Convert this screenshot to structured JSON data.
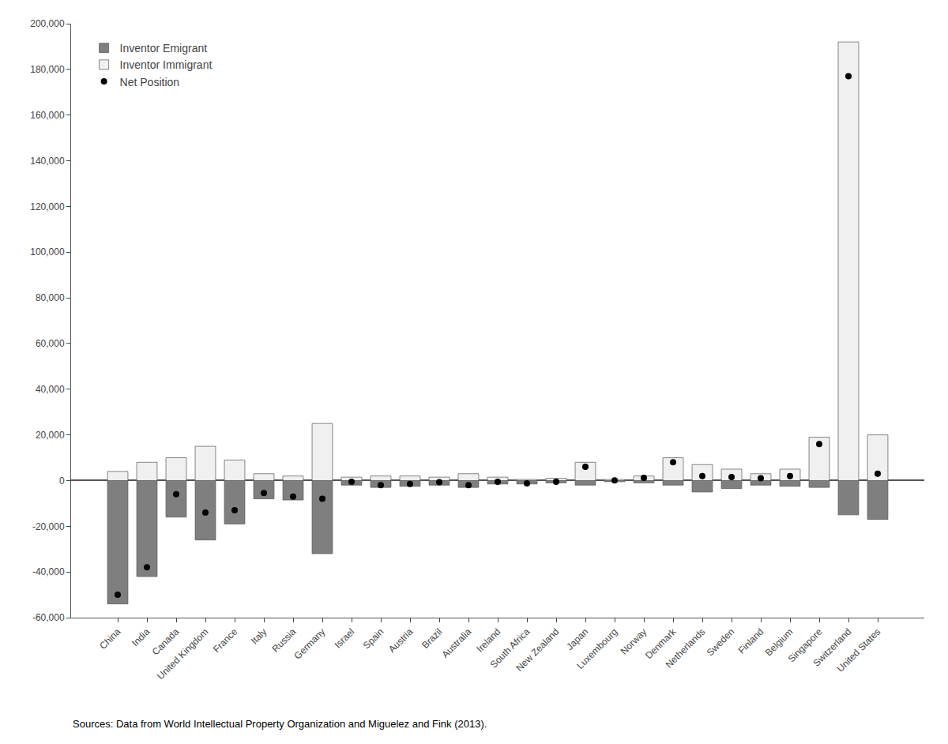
{
  "chart_data": {
    "type": "bar",
    "categories": [
      "China",
      "India",
      "Canada",
      "United Kingdom",
      "France",
      "Italy",
      "Russia",
      "Germany",
      "Israel",
      "Spain",
      "Austria",
      "Brazil",
      "Australia",
      "Ireland",
      "South Africa",
      "New Zealand",
      "Japan",
      "Luxembourg",
      "Norway",
      "Denmark",
      "Netherlands",
      "Sweden",
      "Finland",
      "Belgium",
      "Singapore",
      "Switzerland",
      "United States"
    ],
    "series": [
      {
        "name": "Inventor Emigrant",
        "type": "bar",
        "color": "#7f7f7f",
        "values": [
          -54000,
          -42000,
          -16000,
          -26000,
          -19000,
          -8000,
          -8500,
          -32000,
          -2000,
          -3000,
          -2500,
          -2000,
          -3000,
          -1500,
          -1500,
          -1000,
          -2000,
          -500,
          -1000,
          -2000,
          -5000,
          -3500,
          -2000,
          -2500,
          -3000,
          -15000,
          -17000
        ]
      },
      {
        "name": "Inventor Immigrant",
        "type": "bar",
        "color": "#f0f0f0",
        "values": [
          4000,
          8000,
          10000,
          15000,
          9000,
          3000,
          2000,
          25000,
          1500,
          2000,
          2000,
          1500,
          3000,
          1500,
          500,
          1000,
          8000,
          500,
          2000,
          10000,
          7000,
          5000,
          3000,
          5000,
          19000,
          192000,
          20000
        ]
      },
      {
        "name": "Net Position",
        "type": "scatter",
        "color": "#000000",
        "marker": "circle",
        "values": [
          -50000,
          -38000,
          -6000,
          -14000,
          -13000,
          -5500,
          -7000,
          -8000,
          -500,
          -2000,
          -1500,
          -700,
          -2000,
          -500,
          -1200,
          -500,
          6000,
          100,
          1200,
          8000,
          2000,
          1500,
          1000,
          2000,
          16000,
          177000,
          3000
        ]
      }
    ],
    "ylim": [
      -60000,
      200000
    ],
    "yticks": [
      {
        "value": -60000,
        "label": "-60,000"
      },
      {
        "value": -40000,
        "label": "-40,000"
      },
      {
        "value": -20000,
        "label": "-20,000"
      },
      0,
      {
        "value": 20000,
        "label": "20,000"
      },
      {
        "value": 40000,
        "label": "40,000"
      },
      {
        "value": 60000,
        "label": "60,000"
      },
      {
        "value": 80000,
        "label": "80,000"
      },
      {
        "value": 100000,
        "label": "100,000"
      },
      {
        "value": 120000,
        "label": "120,000"
      },
      {
        "value": 140000,
        "label": "140,000"
      },
      {
        "value": 160000,
        "label": "160,000"
      },
      {
        "value": 180000,
        "label": "180,000"
      },
      {
        "value": 200000,
        "label": "200,000"
      }
    ],
    "grid": false,
    "legend": "upper left",
    "annotations": [
      "Sources: Data from World Intellectual Property Organization and Miguelez and Fink (2013)."
    ]
  }
}
